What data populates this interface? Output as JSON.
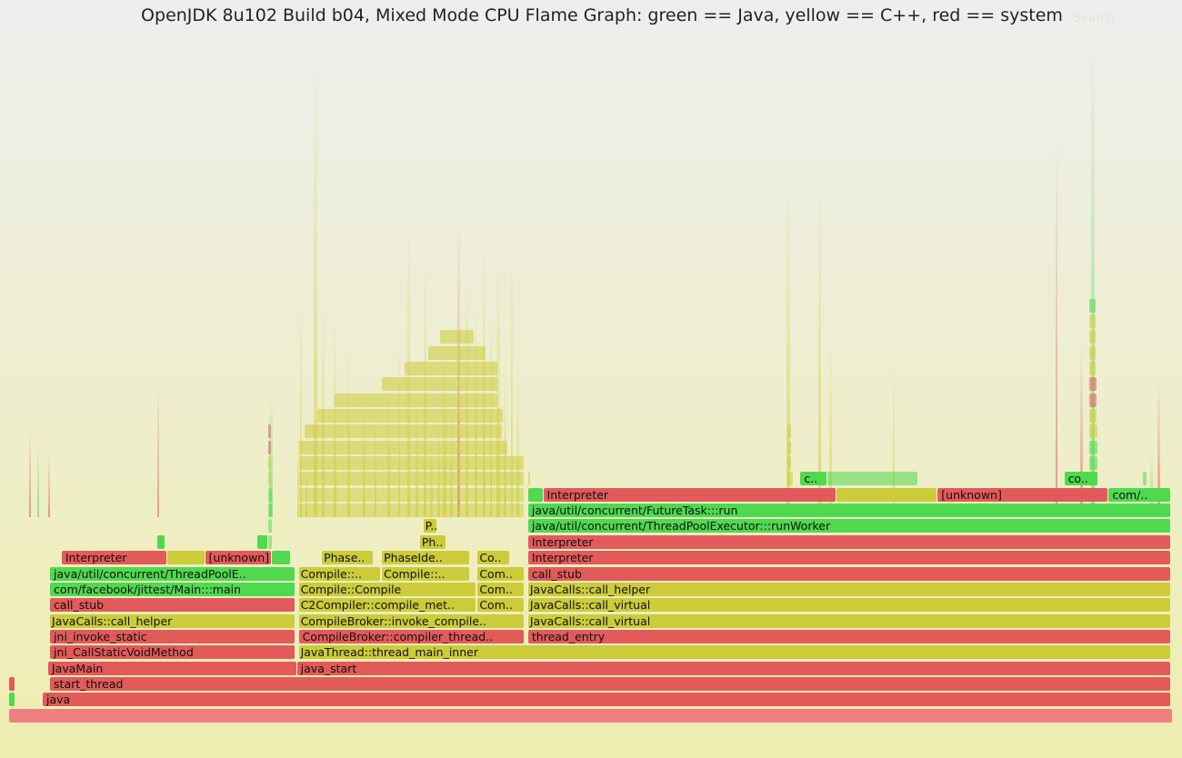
{
  "header": {
    "title": "OpenJDK 8u102 Build b04, Mixed Mode CPU Flame Graph: green == Java, yellow == C++, red == system",
    "search_label": "Search"
  },
  "palette": {
    "java": "#4fd94f",
    "cpp": "#cccc3a",
    "system": "#e35a5a",
    "root": "#f08080"
  },
  "chart_data": {
    "type": "flamegraph",
    "title": "OpenJDK 8u102 Build b04, Mixed Mode CPU Flame Graph: green == Java, yellow == C++, red == system",
    "legend": [
      {
        "label": "green == Java",
        "color": "#4fd94f"
      },
      {
        "label": "yellow == C++",
        "color": "#cccc3a"
      },
      {
        "label": "red == system",
        "color": "#e35a5a"
      }
    ],
    "frames": [
      {
        "name": "",
        "kind": "root",
        "depth": 0,
        "start": 0.0,
        "width": 1.0
      },
      {
        "name": "java",
        "kind": "system",
        "depth": 1,
        "start": 0.0289,
        "width": 0.9695
      },
      {
        "name": "",
        "kind": "java",
        "depth": 1,
        "start": 0.0,
        "width": 0.0055
      },
      {
        "name": "start_thread",
        "kind": "system",
        "depth": 2,
        "start": 0.0352,
        "width": 0.9632
      },
      {
        "name": "",
        "kind": "system",
        "depth": 2,
        "start": 0.0,
        "width": 0.0055
      },
      {
        "name": "JavaMain",
        "kind": "system",
        "depth": 3,
        "start": 0.0336,
        "width": 0.2138
      },
      {
        "name": "java_start",
        "kind": "system",
        "depth": 3,
        "start": 0.2474,
        "width": 0.751
      },
      {
        "name": "jni_CallStaticVoidMethod",
        "kind": "system",
        "depth": 4,
        "start": 0.0352,
        "width": 0.2107
      },
      {
        "name": "JavaThread::thread_main_inner",
        "kind": "cpp",
        "depth": 4,
        "start": 0.2489,
        "width": 0.7495
      },
      {
        "name": "jni_invoke_static",
        "kind": "system",
        "depth": 5,
        "start": 0.0352,
        "width": 0.2107
      },
      {
        "name": "CompileBroker::compiler_thread..",
        "kind": "system",
        "depth": 5,
        "start": 0.2489,
        "width": 0.194
      },
      {
        "name": "thread_entry",
        "kind": "system",
        "depth": 5,
        "start": 0.446,
        "width": 0.5524
      },
      {
        "name": "JavaCalls::call_helper",
        "kind": "cpp",
        "depth": 6,
        "start": 0.0352,
        "width": 0.2107
      },
      {
        "name": "CompileBroker::invoke_compile..",
        "kind": "cpp",
        "depth": 6,
        "start": 0.2489,
        "width": 0.194
      },
      {
        "name": "JavaCalls::call_virtual",
        "kind": "cpp",
        "depth": 6,
        "start": 0.446,
        "width": 0.5524
      },
      {
        "name": "call_stub",
        "kind": "system",
        "depth": 7,
        "start": 0.0352,
        "width": 0.2107
      },
      {
        "name": "C2Compiler::compile_met..",
        "kind": "cpp",
        "depth": 7,
        "start": 0.2489,
        "width": 0.153
      },
      {
        "name": "Com..",
        "kind": "cpp",
        "depth": 7,
        "start": 0.4026,
        "width": 0.0403
      },
      {
        "name": "JavaCalls::call_virtual",
        "kind": "cpp",
        "depth": 7,
        "start": 0.446,
        "width": 0.5524
      },
      {
        "name": "com/facebook/jittest/Main:::main",
        "kind": "java",
        "depth": 8,
        "start": 0.0352,
        "width": 0.2107
      },
      {
        "name": "Compile::Compile",
        "kind": "cpp",
        "depth": 8,
        "start": 0.2489,
        "width": 0.153
      },
      {
        "name": "Com..",
        "kind": "cpp",
        "depth": 8,
        "start": 0.4026,
        "width": 0.0403
      },
      {
        "name": "JavaCalls::call_helper",
        "kind": "cpp",
        "depth": 8,
        "start": 0.446,
        "width": 0.5524
      },
      {
        "name": "java/util/concurrent/ThreadPoolE..",
        "kind": "java",
        "depth": 9,
        "start": 0.0352,
        "width": 0.2107
      },
      {
        "name": "Compile::..",
        "kind": "cpp",
        "depth": 9,
        "start": 0.2489,
        "width": 0.0705
      },
      {
        "name": "Compile::..",
        "kind": "cpp",
        "depth": 9,
        "start": 0.3204,
        "width": 0.0755
      },
      {
        "name": "Com..",
        "kind": "cpp",
        "depth": 9,
        "start": 0.4026,
        "width": 0.0403
      },
      {
        "name": "call_stub",
        "kind": "system",
        "depth": 9,
        "start": 0.446,
        "width": 0.5524
      },
      {
        "name": "Interpreter",
        "kind": "system",
        "depth": 10,
        "start": 0.0452,
        "width": 0.091
      },
      {
        "name": "",
        "kind": "cpp",
        "depth": 10,
        "start": 0.1362,
        "width": 0.0322
      },
      {
        "name": "[unknown]",
        "kind": "system",
        "depth": 10,
        "start": 0.1684,
        "width": 0.057
      },
      {
        "name": "",
        "kind": "java",
        "depth": 10,
        "start": 0.2254,
        "width": 0.017
      },
      {
        "name": "Phase..",
        "kind": "cpp",
        "depth": 10,
        "start": 0.2688,
        "width": 0.0445
      },
      {
        "name": "PhaseIde..",
        "kind": "cpp",
        "depth": 10,
        "start": 0.3204,
        "width": 0.0755
      },
      {
        "name": "Co..",
        "kind": "cpp",
        "depth": 10,
        "start": 0.4026,
        "width": 0.028
      },
      {
        "name": "Interpreter",
        "kind": "system",
        "depth": 10,
        "start": 0.446,
        "width": 0.5524
      },
      {
        "name": "",
        "kind": "java",
        "depth": 11,
        "start": 0.1272,
        "width": 0.007
      },
      {
        "name": "",
        "kind": "java",
        "depth": 11,
        "start": 0.213,
        "width": 0.01
      },
      {
        "name": "Ph..",
        "kind": "cpp",
        "depth": 11,
        "start": 0.353,
        "width": 0.0226
      },
      {
        "name": "Interpreter",
        "kind": "system",
        "depth": 11,
        "start": 0.446,
        "width": 0.5524
      },
      {
        "name": "P..",
        "kind": "cpp",
        "depth": 12,
        "start": 0.356,
        "width": 0.012
      },
      {
        "name": "java/util/concurrent/ThreadPoolExecutor:::runWorker",
        "kind": "java",
        "depth": 12,
        "start": 0.446,
        "width": 0.5524
      },
      {
        "name": "java/util/concurrent/FutureTask:::run",
        "kind": "java",
        "depth": 13,
        "start": 0.446,
        "width": 0.5524
      },
      {
        "name": "",
        "kind": "java",
        "depth": 14,
        "start": 0.446,
        "width": 0.013
      },
      {
        "name": "Interpreter",
        "kind": "system",
        "depth": 14,
        "start": 0.459,
        "width": 0.2519
      },
      {
        "name": "",
        "kind": "cpp",
        "depth": 14,
        "start": 0.7109,
        "width": 0.087
      },
      {
        "name": "[unknown]",
        "kind": "system",
        "depth": 14,
        "start": 0.7979,
        "width": 0.147
      },
      {
        "name": "com/..",
        "kind": "java",
        "depth": 14,
        "start": 0.9449,
        "width": 0.0535
      },
      {
        "name": "c..",
        "kind": "java",
        "depth": 15,
        "start": 0.68,
        "width": 0.0235
      },
      {
        "name": "co..",
        "kind": "java",
        "depth": 15,
        "start": 0.9067,
        "width": 0.0292
      }
    ],
    "slivers": [
      {
        "start": 0.017,
        "width": 0.0015,
        "top": 470,
        "kind": "system"
      },
      {
        "start": 0.024,
        "width": 0.002,
        "top": 485,
        "kind": "java"
      },
      {
        "start": 0.0335,
        "width": 0.002,
        "top": 500,
        "kind": "system"
      },
      {
        "start": 0.1272,
        "width": 0.002,
        "top": 420,
        "kind": "system"
      },
      {
        "start": 0.2235,
        "width": 0.003,
        "top": 430,
        "kind": "java"
      },
      {
        "start": 0.2475,
        "width": 0.002,
        "top": 470,
        "kind": "cpp"
      },
      {
        "start": 0.25,
        "width": 0.0018,
        "top": 330,
        "kind": "cpp"
      },
      {
        "start": 0.2545,
        "width": 0.002,
        "top": 500,
        "kind": "cpp"
      },
      {
        "start": 0.262,
        "width": 0.0025,
        "top": 60,
        "kind": "cpp"
      },
      {
        "start": 0.269,
        "width": 0.002,
        "top": 330,
        "kind": "cpp"
      },
      {
        "start": 0.279,
        "width": 0.002,
        "top": 350,
        "kind": "cpp"
      },
      {
        "start": 0.2905,
        "width": 0.0022,
        "top": 380,
        "kind": "cpp"
      },
      {
        "start": 0.304,
        "width": 0.002,
        "top": 430,
        "kind": "cpp"
      },
      {
        "start": 0.314,
        "width": 0.002,
        "top": 440,
        "kind": "cpp"
      },
      {
        "start": 0.325,
        "width": 0.002,
        "top": 420,
        "kind": "cpp"
      },
      {
        "start": 0.334,
        "width": 0.002,
        "top": 380,
        "kind": "cpp"
      },
      {
        "start": 0.342,
        "width": 0.0025,
        "top": 245,
        "kind": "cpp"
      },
      {
        "start": 0.3495,
        "width": 0.002,
        "top": 430,
        "kind": "cpp"
      },
      {
        "start": 0.356,
        "width": 0.0025,
        "top": 280,
        "kind": "cpp"
      },
      {
        "start": 0.362,
        "width": 0.0022,
        "top": 470,
        "kind": "cpp"
      },
      {
        "start": 0.368,
        "width": 0.002,
        "top": 455,
        "kind": "cpp"
      },
      {
        "start": 0.373,
        "width": 0.0025,
        "top": 360,
        "kind": "cpp"
      },
      {
        "start": 0.379,
        "width": 0.002,
        "top": 450,
        "kind": "cpp"
      },
      {
        "start": 0.385,
        "width": 0.0025,
        "top": 240,
        "kind": "system"
      },
      {
        "start": 0.392,
        "width": 0.0022,
        "top": 300,
        "kind": "cpp"
      },
      {
        "start": 0.4,
        "width": 0.0025,
        "top": 330,
        "kind": "cpp"
      },
      {
        "start": 0.407,
        "width": 0.0025,
        "top": 260,
        "kind": "cpp"
      },
      {
        "start": 0.413,
        "width": 0.002,
        "top": 340,
        "kind": "cpp"
      },
      {
        "start": 0.419,
        "width": 0.0025,
        "top": 280,
        "kind": "cpp"
      },
      {
        "start": 0.425,
        "width": 0.002,
        "top": 400,
        "kind": "cpp"
      },
      {
        "start": 0.431,
        "width": 0.002,
        "top": 260,
        "kind": "cpp"
      },
      {
        "start": 0.436,
        "width": 0.002,
        "top": 400,
        "kind": "cpp"
      },
      {
        "start": 0.668,
        "width": 0.003,
        "top": 190,
        "kind": "cpp"
      },
      {
        "start": 0.6955,
        "width": 0.0022,
        "top": 190,
        "kind": "cpp"
      },
      {
        "start": 0.705,
        "width": 0.002,
        "top": 380,
        "kind": "cpp"
      },
      {
        "start": 0.759,
        "width": 0.002,
        "top": 400,
        "kind": "cpp"
      },
      {
        "start": 0.899,
        "width": 0.002,
        "top": 150,
        "kind": "system"
      },
      {
        "start": 0.9205,
        "width": 0.0025,
        "top": 380,
        "kind": "system"
      },
      {
        "start": 0.9295,
        "width": 0.003,
        "top": 40,
        "kind": "java"
      },
      {
        "start": 0.9805,
        "width": 0.002,
        "top": 500,
        "kind": "java"
      },
      {
        "start": 0.987,
        "width": 0.002,
        "top": 420,
        "kind": "system"
      }
    ],
    "towers": [
      {
        "start": 0.9282,
        "width": 0.008,
        "depth": 15,
        "kind": "java"
      },
      {
        "start": 0.9282,
        "width": 0.008,
        "depth": 16,
        "kind": "java"
      },
      {
        "start": 0.9282,
        "width": 0.008,
        "depth": 17,
        "kind": "java"
      },
      {
        "start": 0.9282,
        "width": 0.008,
        "depth": 18,
        "kind": "cpp"
      },
      {
        "start": 0.9282,
        "width": 0.007,
        "depth": 19,
        "kind": "cpp"
      },
      {
        "start": 0.9282,
        "width": 0.007,
        "depth": 20,
        "kind": "system"
      },
      {
        "start": 0.9282,
        "width": 0.007,
        "depth": 21,
        "kind": "system"
      },
      {
        "start": 0.9282,
        "width": 0.006,
        "depth": 22,
        "kind": "cpp"
      },
      {
        "start": 0.9282,
        "width": 0.006,
        "depth": 23,
        "kind": "cpp"
      },
      {
        "start": 0.9282,
        "width": 0.006,
        "depth": 24,
        "kind": "cpp"
      },
      {
        "start": 0.9282,
        "width": 0.006,
        "depth": 25,
        "kind": "cpp"
      },
      {
        "start": 0.9282,
        "width": 0.006,
        "depth": 26,
        "kind": "java"
      },
      {
        "start": 0.2225,
        "width": 0.004,
        "depth": 11,
        "kind": "java"
      },
      {
        "start": 0.2225,
        "width": 0.004,
        "depth": 12,
        "kind": "java"
      },
      {
        "start": 0.2225,
        "width": 0.004,
        "depth": 13,
        "kind": "java"
      },
      {
        "start": 0.2225,
        "width": 0.004,
        "depth": 14,
        "kind": "java"
      },
      {
        "start": 0.2225,
        "width": 0.003,
        "depth": 15,
        "kind": "cpp"
      },
      {
        "start": 0.2225,
        "width": 0.003,
        "depth": 16,
        "kind": "cpp"
      },
      {
        "start": 0.2225,
        "width": 0.003,
        "depth": 17,
        "kind": "system"
      },
      {
        "start": 0.2225,
        "width": 0.003,
        "depth": 18,
        "kind": "system"
      },
      {
        "start": 0.669,
        "width": 0.005,
        "depth": 15,
        "kind": "cpp"
      },
      {
        "start": 0.669,
        "width": 0.004,
        "depth": 16,
        "kind": "cpp"
      },
      {
        "start": 0.669,
        "width": 0.004,
        "depth": 17,
        "kind": "cpp"
      },
      {
        "start": 0.669,
        "width": 0.004,
        "depth": 18,
        "kind": "cpp"
      },
      {
        "start": 0.7035,
        "width": 0.078,
        "depth": 15,
        "kind": "java"
      },
      {
        "start": 0.446,
        "width": 0.002,
        "depth": 15,
        "kind": "cpp"
      },
      {
        "start": 0.974,
        "width": 0.004,
        "depth": 15,
        "kind": "java"
      },
      {
        "start": 0.2489,
        "width": 0.194,
        "depth": 13,
        "kind": "cpp"
      },
      {
        "start": 0.2489,
        "width": 0.194,
        "depth": 14,
        "kind": "cpp"
      },
      {
        "start": 0.2489,
        "width": 0.194,
        "depth": 15,
        "kind": "cpp"
      },
      {
        "start": 0.2489,
        "width": 0.194,
        "depth": 16,
        "kind": "cpp"
      },
      {
        "start": 0.2489,
        "width": 0.18,
        "depth": 17,
        "kind": "cpp"
      },
      {
        "start": 0.254,
        "width": 0.17,
        "depth": 18,
        "kind": "cpp"
      },
      {
        "start": 0.265,
        "width": 0.16,
        "depth": 19,
        "kind": "cpp"
      },
      {
        "start": 0.28,
        "width": 0.14,
        "depth": 20,
        "kind": "cpp"
      },
      {
        "start": 0.32,
        "width": 0.1,
        "depth": 21,
        "kind": "cpp"
      },
      {
        "start": 0.34,
        "width": 0.08,
        "depth": 22,
        "kind": "cpp"
      },
      {
        "start": 0.36,
        "width": 0.05,
        "depth": 23,
        "kind": "cpp"
      },
      {
        "start": 0.37,
        "width": 0.03,
        "depth": 24,
        "kind": "cpp"
      }
    ]
  }
}
